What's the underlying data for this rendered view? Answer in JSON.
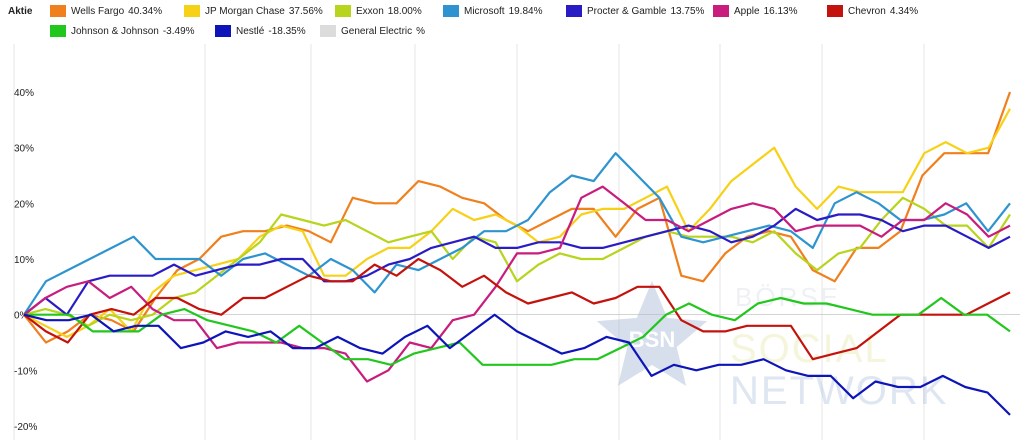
{
  "legend": {
    "title": "Aktie",
    "items": [
      {
        "name": "Wells Fargo",
        "value": "40.34%",
        "color": "#f07f1d"
      },
      {
        "name": "JP Morgan Chase",
        "value": "37.56%",
        "color": "#f7d117"
      },
      {
        "name": "Exxon",
        "value": "18.00%",
        "color": "#b8d41c"
      },
      {
        "name": "Microsoft",
        "value": "19.84%",
        "color": "#2e94cf"
      },
      {
        "name": "Procter & Gamble",
        "value": "13.75%",
        "color": "#2a1cc4"
      },
      {
        "name": "Apple",
        "value": "16.13%",
        "color": "#c81c7e"
      },
      {
        "name": "Chevron",
        "value": "4.34%",
        "color": "#c4120c"
      },
      {
        "name": "Johnson & Johnson",
        "value": "-3.49%",
        "color": "#22c71e"
      },
      {
        "name": "Nestlé",
        "value": "-18.35%",
        "color": "#0d14b8"
      },
      {
        "name": "General Electric",
        "value": "%",
        "color": "#dcdcdc"
      }
    ]
  },
  "watermark": {
    "line1": "BÖRSE",
    "line2": "SOCIAL",
    "line3": "NETWORK",
    "badge": "BSN"
  },
  "chart_data": {
    "type": "line",
    "ylim": [
      -20,
      40
    ],
    "y_ticks": [
      -20,
      -10,
      0,
      10,
      20,
      30,
      40
    ],
    "y_tick_labels": [
      "-20%",
      "-10%",
      "0%",
      "10%",
      "20%",
      "30%",
      "40%"
    ],
    "grid": "vertical",
    "series": [
      {
        "name": "Wells Fargo",
        "color": "#f07f1d",
        "values": [
          0,
          -5,
          -3,
          0,
          -1,
          -3,
          3,
          8,
          10,
          14,
          15,
          15,
          16,
          15,
          13,
          21,
          20,
          20,
          24,
          23,
          21,
          20,
          17,
          15,
          17,
          19,
          19,
          14,
          19,
          21,
          7,
          6,
          11,
          14,
          15,
          14,
          8,
          6,
          12,
          12,
          15,
          25,
          29,
          29,
          29,
          40
        ]
      },
      {
        "name": "JP Morgan Chase",
        "color": "#f7d117",
        "values": [
          0,
          -2,
          -4,
          -2,
          1,
          -3,
          4,
          7,
          8,
          9,
          10,
          14,
          16,
          15,
          7,
          7,
          10,
          12,
          12,
          15,
          19,
          17,
          18,
          16,
          13,
          14,
          18,
          19,
          19,
          21,
          23,
          15,
          19,
          24,
          27,
          30,
          23,
          19,
          23,
          22,
          22,
          22,
          29,
          31,
          29,
          30,
          37
        ]
      },
      {
        "name": "Exxon",
        "color": "#b8d41c",
        "values": [
          0,
          1,
          0,
          -2,
          0,
          -1,
          0,
          3,
          4,
          7,
          10,
          13,
          18,
          17,
          16,
          17,
          15,
          13,
          14,
          15,
          10,
          14,
          13,
          6,
          9,
          11,
          10,
          10,
          12,
          14,
          15,
          14,
          14,
          14,
          13,
          15,
          11,
          8,
          11,
          12,
          17,
          21,
          19,
          16,
          16,
          12,
          18
        ]
      },
      {
        "name": "Microsoft",
        "color": "#2e94cf",
        "values": [
          0,
          6,
          8,
          10,
          12,
          14,
          10,
          10,
          10,
          7,
          10,
          11,
          9,
          7,
          10,
          8,
          4,
          9,
          8,
          10,
          12,
          15,
          15,
          17,
          22,
          25,
          24,
          29,
          25,
          21,
          14,
          13,
          14,
          15,
          16,
          15,
          12,
          20,
          22,
          20,
          17,
          17,
          18,
          20,
          15,
          20
        ]
      },
      {
        "name": "Procter & Gamble",
        "color": "#2a1cc4",
        "values": [
          0,
          3,
          0,
          6,
          7,
          7,
          7,
          9,
          7,
          8,
          9,
          9,
          10,
          10,
          6,
          6,
          7,
          9,
          10,
          12,
          13,
          14,
          12,
          12,
          13,
          13,
          12,
          12,
          13,
          14,
          15,
          16,
          15,
          13,
          14,
          16,
          19,
          17,
          18,
          18,
          17,
          15,
          16,
          16,
          14,
          12,
          14
        ]
      },
      {
        "name": "Apple",
        "color": "#c81c7e",
        "values": [
          0,
          3,
          5,
          6,
          3,
          5,
          1,
          -1,
          -1,
          -6,
          -5,
          -5,
          -5,
          -6,
          -6,
          -7,
          -12,
          -10,
          -5,
          -6,
          -1,
          0,
          5,
          11,
          11,
          12,
          21,
          23,
          20,
          17,
          17,
          15,
          17,
          19,
          20,
          19,
          15,
          16,
          16,
          16,
          14,
          17,
          17,
          20,
          18,
          14,
          16
        ]
      },
      {
        "name": "Chevron",
        "color": "#c4120c",
        "values": [
          0,
          -3,
          -5,
          0,
          1,
          0,
          3,
          3,
          1,
          0,
          3,
          3,
          5,
          7,
          6,
          6,
          9,
          7,
          10,
          8,
          5,
          7,
          4,
          2,
          3,
          4,
          2,
          3,
          5,
          5,
          -1,
          -3,
          -3,
          -2,
          -2,
          -2,
          -8,
          -7,
          -6,
          -3,
          0,
          0,
          0,
          0,
          2,
          4
        ]
      },
      {
        "name": "Johnson & Johnson",
        "color": "#22c71e",
        "values": [
          0,
          0,
          0,
          -3,
          -3,
          -3,
          0,
          1,
          -1,
          -2,
          -3,
          -5,
          -2,
          -5,
          -8,
          -8,
          -9,
          -7,
          -6,
          -5,
          -9,
          -9,
          -9,
          -9,
          -8,
          -8,
          -6,
          -4,
          0,
          2,
          0,
          -1,
          2,
          3,
          2,
          2,
          1,
          0,
          0,
          0,
          3,
          0,
          0,
          -3
        ]
      },
      {
        "name": "Nestlé",
        "color": "#0d14b8",
        "values": [
          0,
          -1,
          -1,
          0,
          -3,
          -2,
          -2,
          -6,
          -5,
          -3,
          -4,
          -3,
          -6,
          -6,
          -4,
          -6,
          -7,
          -4,
          -2,
          -6,
          -3,
          0,
          -3,
          -5,
          -7,
          -6,
          -4,
          -5,
          -11,
          -9,
          -10,
          -9,
          -9,
          -8,
          -10,
          -11,
          -11,
          -15,
          -12,
          -13,
          -13,
          -11,
          -13,
          -14,
          -18
        ]
      }
    ]
  }
}
